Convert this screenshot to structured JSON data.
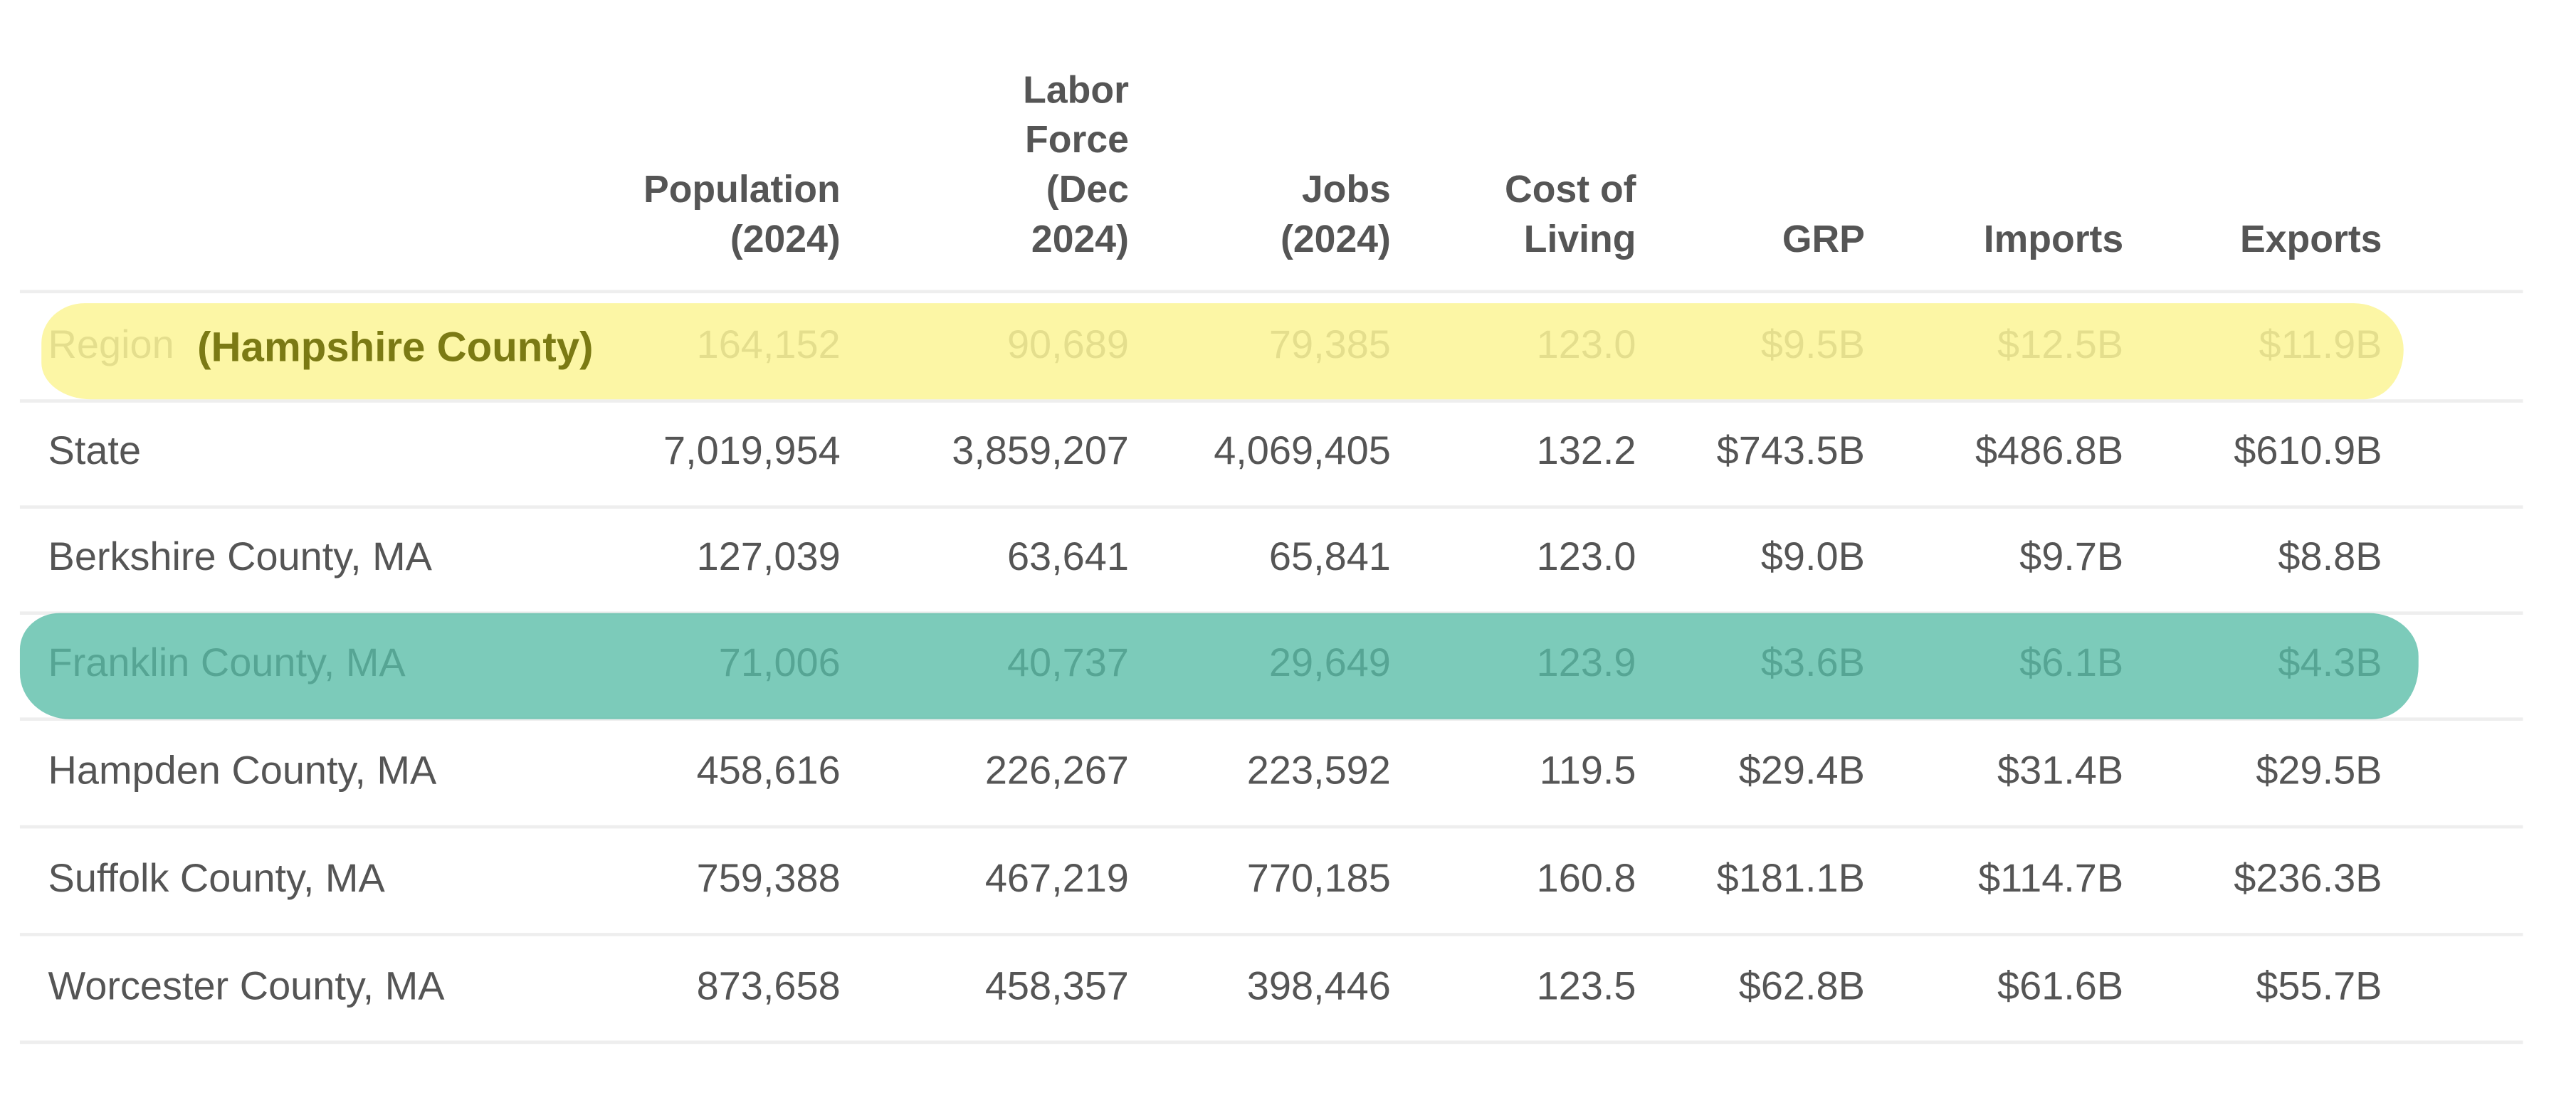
{
  "table": {
    "headers": [
      "",
      "Population\n(2024)",
      "Labor\nForce\n(Dec\n2024)",
      "Jobs\n(2024)",
      "Cost of\nLiving",
      "GRP",
      "Imports",
      "Exports"
    ],
    "rows": [
      [
        "Region",
        "164,152",
        "90,689",
        "79,385",
        "123.0",
        "$9.5B",
        "$12.5B",
        "$11.9B"
      ],
      [
        "State",
        "7,019,954",
        "3,859,207",
        "4,069,405",
        "132.2",
        "$743.5B",
        "$486.8B",
        "$610.9B"
      ],
      [
        "Berkshire County, MA",
        "127,039",
        "63,641",
        "65,841",
        "123.0",
        "$9.0B",
        "$9.7B",
        "$8.8B"
      ],
      [
        "Franklin County, MA",
        "71,006",
        "40,737",
        "29,649",
        "123.9",
        "$3.6B",
        "$6.1B",
        "$4.3B"
      ],
      [
        "Hampden County, MA",
        "458,616",
        "226,267",
        "223,592",
        "119.5",
        "$29.4B",
        "$31.4B",
        "$29.5B"
      ],
      [
        "Suffolk County, MA",
        "759,388",
        "467,219",
        "770,185",
        "160.8",
        "$181.1B",
        "$114.7B",
        "$236.3B"
      ],
      [
        "Worcester County, MA",
        "873,658",
        "458,357",
        "398,446",
        "123.5",
        "$62.8B",
        "$61.6B",
        "$55.7B"
      ]
    ]
  },
  "annotations": {
    "region_note": "(Hampshire County)",
    "highlight_colors": {
      "yellow": "#fcf596",
      "green": "#57bca6"
    }
  }
}
